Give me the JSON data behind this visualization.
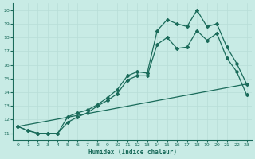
{
  "xlabel": "Humidex (Indice chaleur)",
  "bg_color": "#c8ebe5",
  "grid_color": "#b8ddd8",
  "line_color": "#1a6b5a",
  "xlim": [
    -0.5,
    23.5
  ],
  "ylim": [
    10.5,
    20.5
  ],
  "xticks": [
    0,
    1,
    2,
    3,
    4,
    5,
    6,
    7,
    8,
    9,
    10,
    11,
    12,
    13,
    14,
    15,
    16,
    17,
    18,
    19,
    20,
    21,
    22,
    23
  ],
  "yticks": [
    11,
    12,
    13,
    14,
    15,
    16,
    17,
    18,
    19,
    20
  ],
  "line1_x": [
    0,
    1,
    2,
    3,
    4,
    5,
    6,
    7,
    8,
    9,
    10,
    11,
    12,
    13,
    14,
    15,
    16,
    17,
    18,
    19,
    20,
    21,
    22,
    23
  ],
  "line1_y": [
    11.5,
    11.2,
    11.0,
    11.0,
    11.0,
    12.2,
    12.5,
    12.7,
    13.1,
    13.6,
    14.2,
    15.2,
    15.5,
    15.4,
    18.5,
    19.3,
    19.0,
    18.8,
    20.0,
    18.8,
    19.0,
    17.3,
    16.1,
    14.6
  ],
  "line2_x": [
    0,
    1,
    2,
    3,
    4,
    5,
    6,
    7,
    8,
    9,
    10,
    11,
    12,
    13,
    14,
    15,
    16,
    17,
    18,
    19,
    20,
    21,
    22,
    23
  ],
  "line2_y": [
    11.5,
    11.2,
    11.0,
    11.0,
    11.0,
    11.8,
    12.2,
    12.5,
    13.0,
    13.4,
    13.9,
    14.9,
    15.2,
    15.2,
    17.5,
    18.0,
    17.2,
    17.3,
    18.5,
    17.8,
    18.3,
    16.5,
    15.5,
    13.8
  ],
  "line3_x": [
    0,
    23
  ],
  "line3_y": [
    11.5,
    14.6
  ],
  "marker": "D",
  "markersize": 2.0,
  "linewidth": 0.9
}
